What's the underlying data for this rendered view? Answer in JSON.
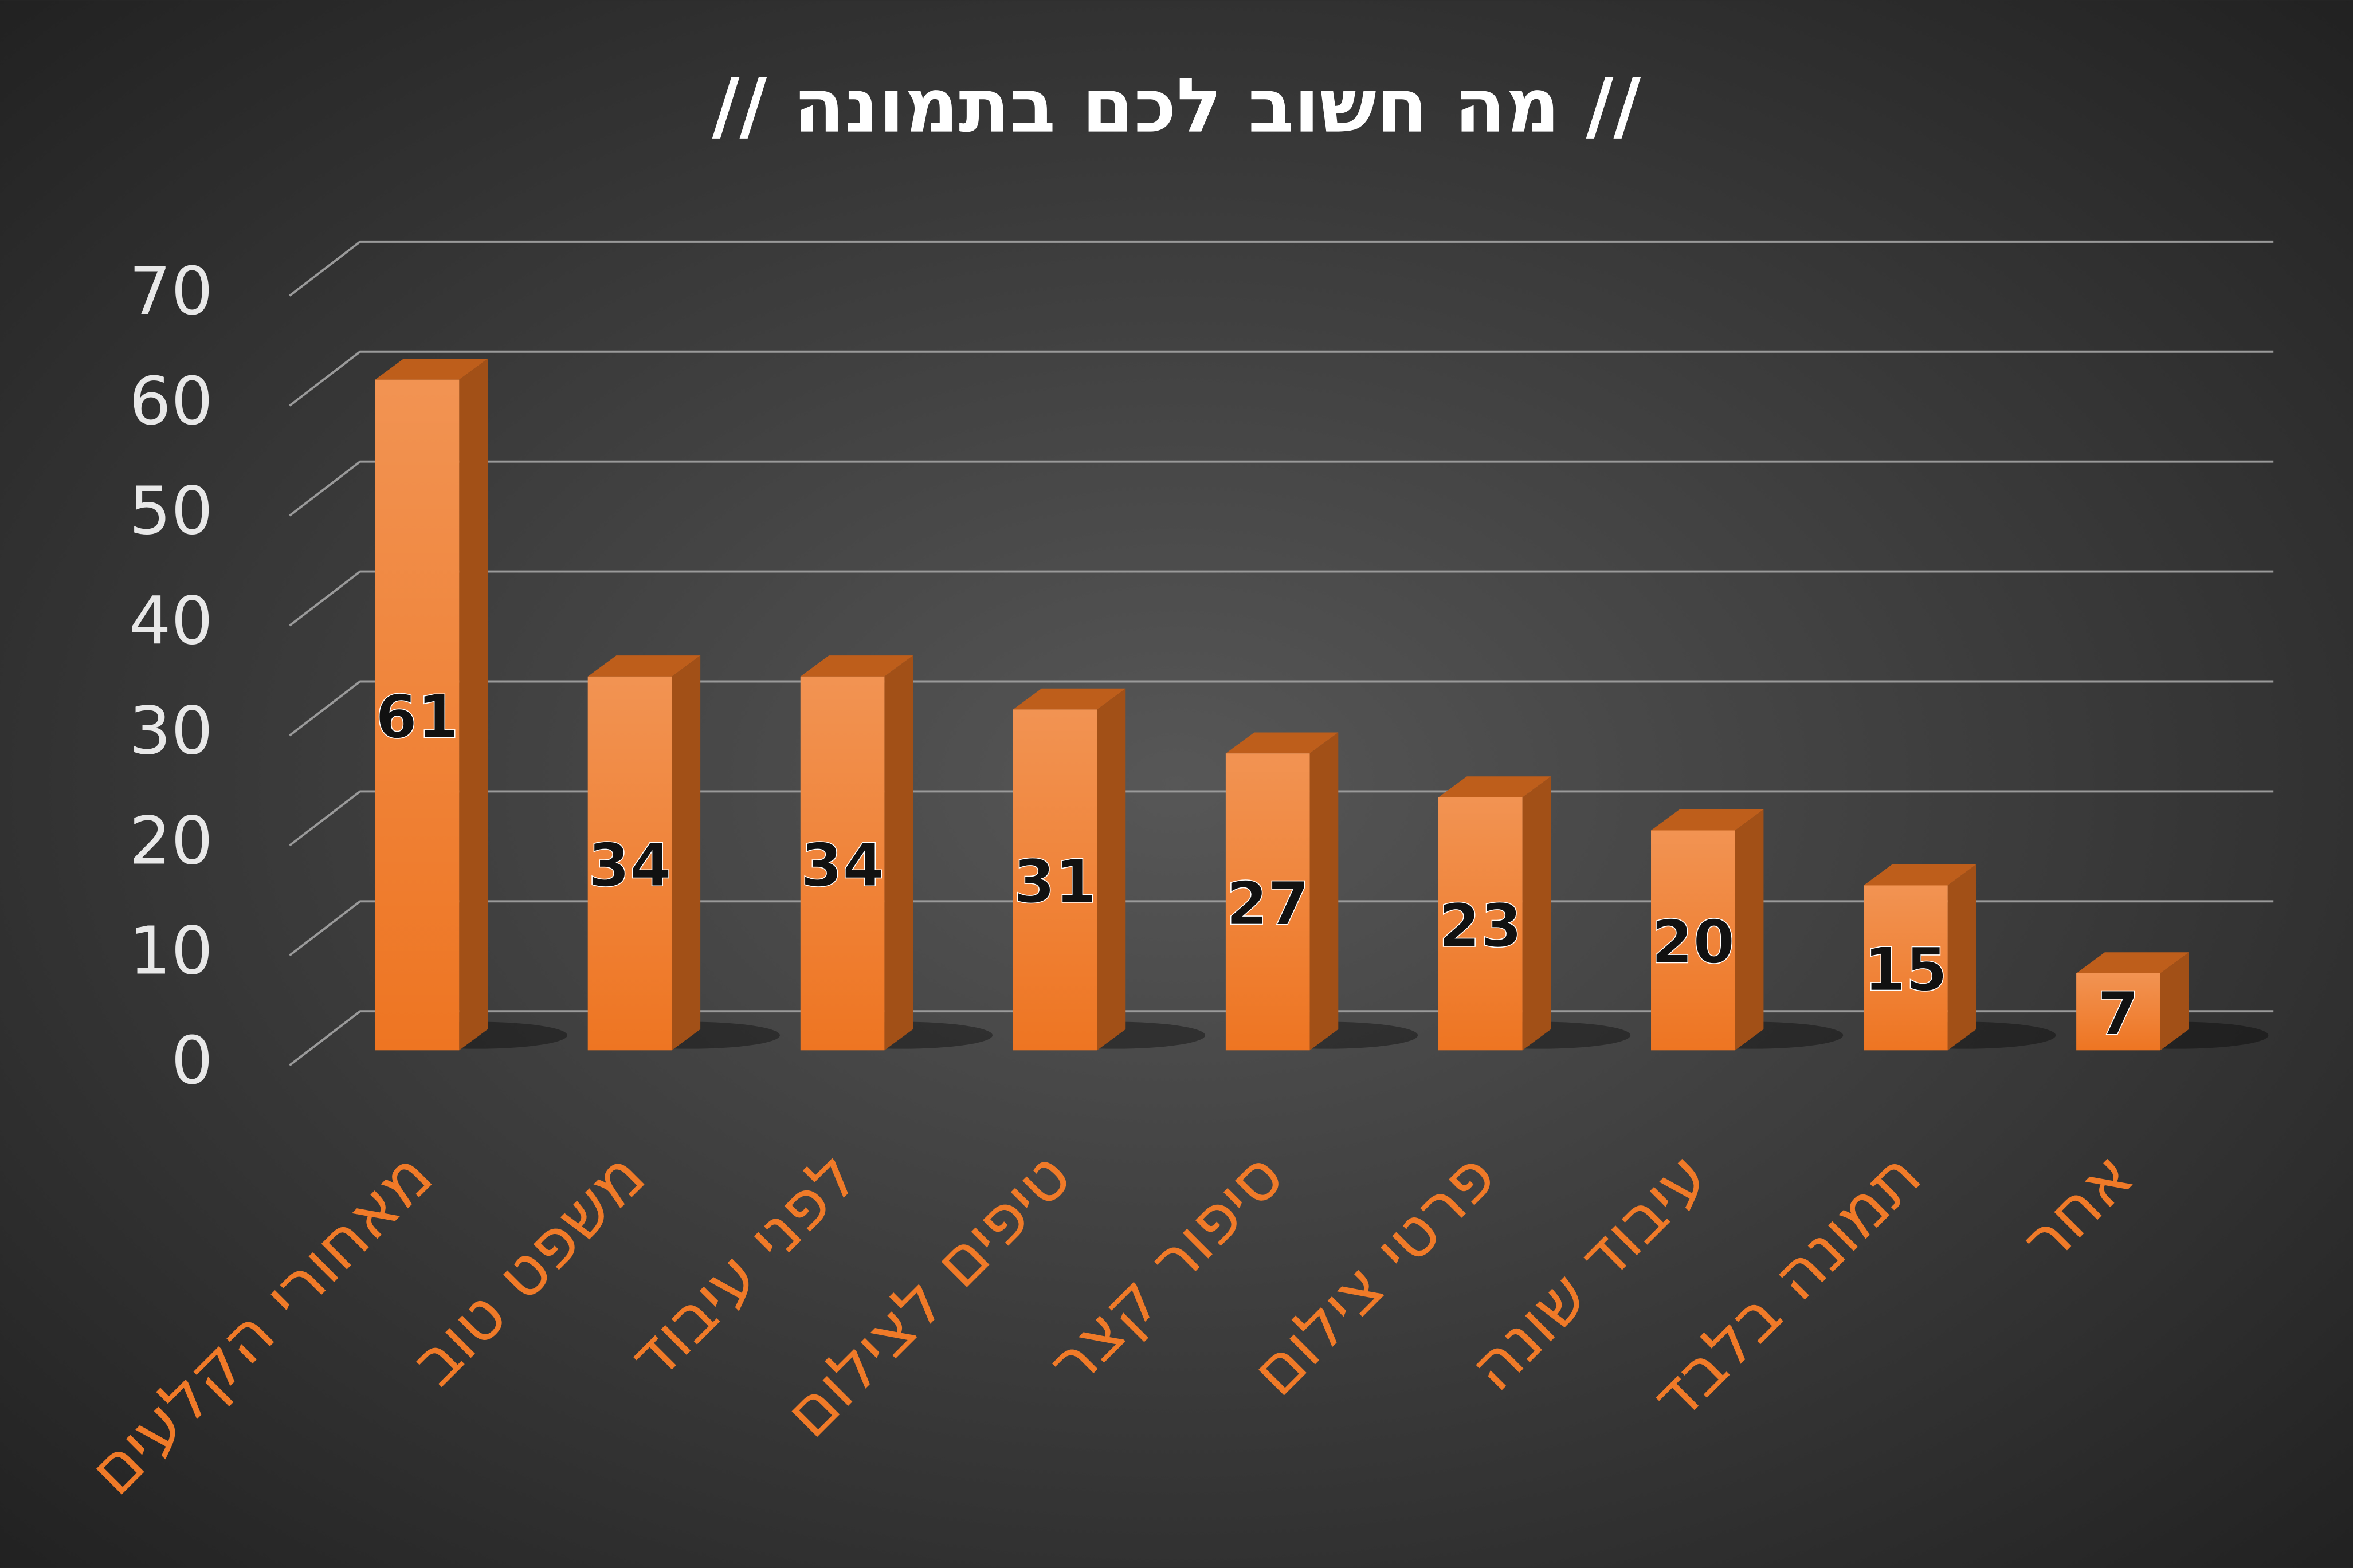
{
  "chart_data": {
    "type": "bar",
    "title": "// מה חשוב לכם בתמונה //",
    "categories": [
      "מאחורי הקלעים",
      "משפט טוב",
      "לפני עיבוד",
      "טיפים לצילום",
      "סיפור קצר",
      "פרטי צילום",
      "עיבוד שונה",
      "תמונה בלבד",
      "אחר"
    ],
    "values": [
      61,
      34,
      34,
      31,
      27,
      23,
      20,
      15,
      7
    ],
    "color": "#ee7522",
    "ylim": [
      0,
      70
    ],
    "yticks": [
      0,
      10,
      20,
      30,
      40,
      50,
      60,
      70
    ],
    "grid": true
  }
}
